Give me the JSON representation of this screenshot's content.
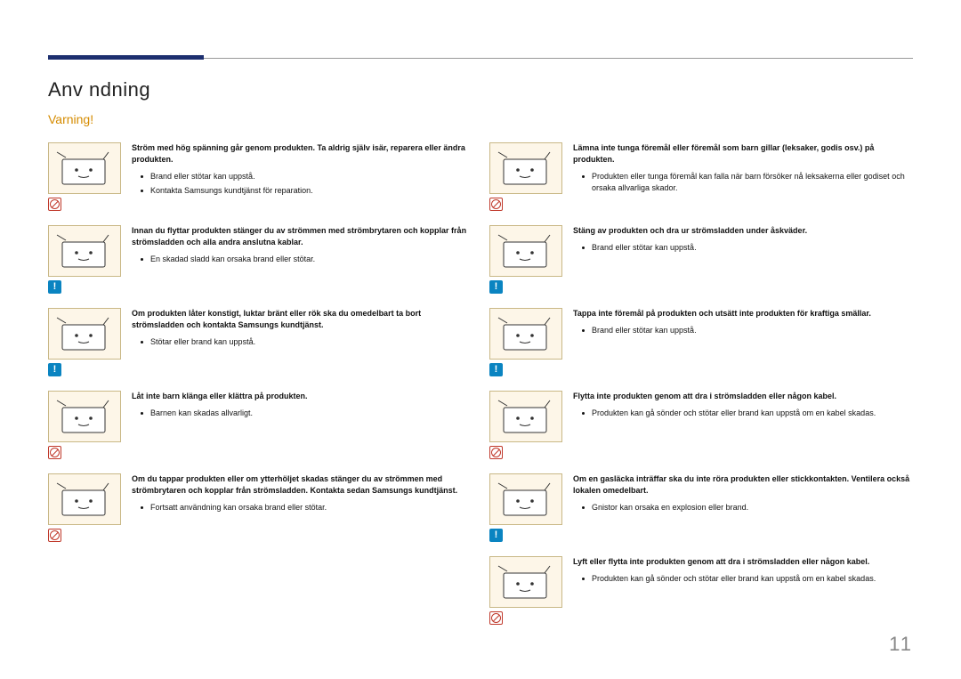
{
  "page_number": "11",
  "heading": "Anv  ndning",
  "subheading": "Varning!",
  "colors": {
    "accent_bar": "#1d2f6f",
    "warning_text": "#d58b00",
    "illustration_bg": "#fdf6e8",
    "illustration_border": "#c9b886",
    "prohibit": "#c0392b",
    "info": "#0a84c1"
  },
  "left": [
    {
      "badge": "prohibit",
      "lead": "Ström med hög spänning går genom produkten. Ta aldrig själv isär, reparera eller ändra produkten.",
      "bullets": [
        "Brand eller stötar kan uppstå.",
        "Kontakta Samsungs kundtjänst för reparation."
      ]
    },
    {
      "badge": "info",
      "lead": "Innan du flyttar produkten stänger du av strömmen med strömbrytaren och kopplar från strömsladden och alla andra anslutna kablar.",
      "bullets": [
        "En skadad sladd kan orsaka brand eller stötar."
      ]
    },
    {
      "badge": "info",
      "lead": "Om produkten låter konstigt, luktar bränt eller rök ska du omedelbart ta bort strömsladden och kontakta Samsungs kundtjänst.",
      "bullets": [
        "Stötar eller brand kan uppstå."
      ]
    },
    {
      "badge": "prohibit",
      "lead": "Låt inte barn klänga eller klättra på produkten.",
      "bullets": [
        "Barnen kan skadas allvarligt."
      ]
    },
    {
      "badge": "prohibit",
      "lead": "Om du tappar produkten eller om ytterhöljet skadas stänger du av strömmen med strömbrytaren och kopplar från strömsladden. Kontakta sedan Samsungs kundtjänst.",
      "bullets": [
        "Fortsatt användning kan orsaka brand eller stötar."
      ]
    }
  ],
  "right": [
    {
      "badge": "prohibit",
      "lead": "Lämna inte tunga föremål eller föremål som barn gillar (leksaker, godis osv.) på produkten.",
      "bullets": [
        "Produkten eller tunga föremål kan falla när barn försöker nå leksakerna eller godiset och orsaka allvarliga skador."
      ]
    },
    {
      "badge": "info",
      "lead": "Stäng av produkten och dra ur strömsladden under åskväder.",
      "bullets": [
        "Brand eller stötar kan uppstå."
      ]
    },
    {
      "badge": "info",
      "lead": "Tappa inte föremål på produkten och utsätt inte produkten för kraftiga smällar.",
      "bullets": [
        "Brand eller stötar kan uppstå."
      ]
    },
    {
      "badge": "prohibit",
      "lead": "Flytta inte produkten genom att dra i strömsladden eller någon kabel.",
      "bullets": [
        "Produkten kan gå sönder och stötar eller brand kan uppstå om en kabel skadas."
      ]
    },
    {
      "badge": "info",
      "lead": "Om en gasläcka inträffar ska du inte röra produkten eller stickkontakten. Ventilera också lokalen omedelbart.",
      "bullets": [
        "Gnistor kan orsaka en explosion eller brand."
      ]
    },
    {
      "badge": "prohibit",
      "lead": "Lyft eller flytta inte produkten genom att dra i strömsladden eller någon kabel.",
      "bullets": [
        "Produkten kan gå sönder och stötar eller brand kan uppstå om en kabel skadas."
      ]
    }
  ]
}
